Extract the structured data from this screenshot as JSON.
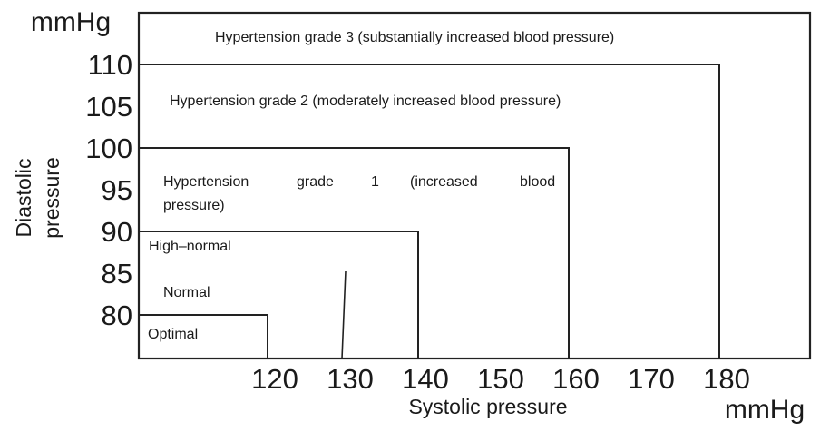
{
  "chart_data": {
    "type": "area",
    "title": "",
    "xlabel": "Systolic pressure",
    "ylabel": [
      "Diastolic",
      "pressure"
    ],
    "x_unit": "mmHg",
    "y_unit": "mmHg",
    "xlim": [
      110,
      185
    ],
    "ylim": [
      77,
      116
    ],
    "x_ticks": [
      "120",
      "130",
      "140",
      "150",
      "160",
      "170",
      "180"
    ],
    "y_ticks": [
      "80",
      "85",
      "90",
      "95",
      "100",
      "105",
      "110"
    ],
    "x_tick_values": [
      120,
      130,
      140,
      150,
      160,
      170,
      180
    ],
    "y_tick_values": [
      80,
      85,
      90,
      95,
      100,
      105,
      110
    ],
    "zones": [
      {
        "name": "Hypertension grade 3 (substantially increased blood pressure)",
        "systolic_max": null,
        "diastolic_max": null
      },
      {
        "name": "Hypertension grade 2 (moderately increased blood pressure)",
        "systolic_max": 180,
        "diastolic_max": 110
      },
      {
        "name": "Hypertension grade 1 (increased blood pressure)",
        "systolic_max": 160,
        "diastolic_max": 100
      },
      {
        "name": "High–normal",
        "systolic_max": 140,
        "diastolic_max": 90
      },
      {
        "name": "Normal",
        "systolic_max": 130,
        "diastolic_max": 85
      },
      {
        "name": "Optimal",
        "systolic_max": 120,
        "diastolic_max": 80
      }
    ],
    "grid": false,
    "legend": "none"
  }
}
